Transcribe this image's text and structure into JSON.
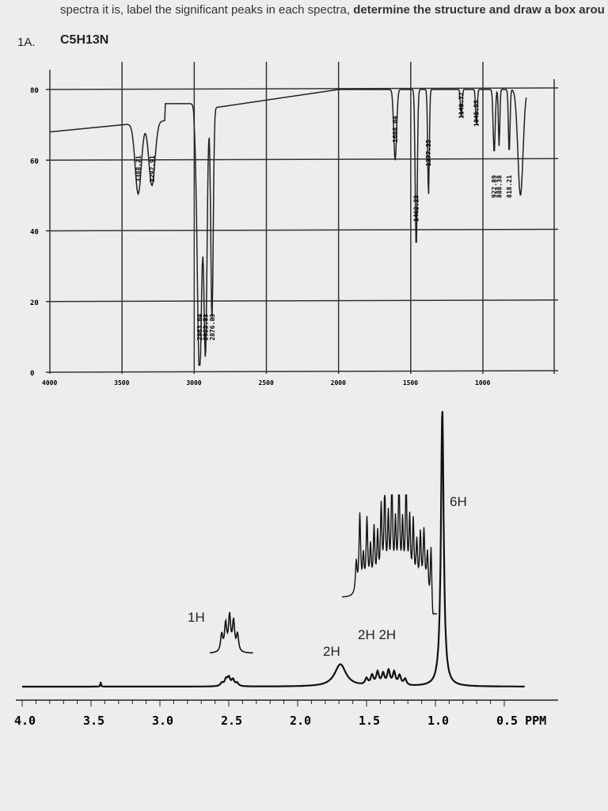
{
  "header": {
    "instruction_plain": "spectra it is, label the significant peaks in each spectra, ",
    "instruction_bold": "determine the structure and draw a box arou"
  },
  "question": {
    "number": "1A.",
    "formula": "C5H13N"
  },
  "chart_data": [
    {
      "type": "line",
      "title": "",
      "xlabel": "",
      "ylabel": "",
      "xlim": [
        4000,
        1000
      ],
      "ylim": [
        0,
        80
      ],
      "x_ticks": [
        "4000",
        "3500",
        "3000",
        "2500",
        "2000",
        "1500",
        "1000"
      ],
      "y_ticks": [
        "80",
        "60",
        "40",
        "20",
        "0"
      ],
      "grid": true,
      "peak_labels": [
        {
          "x": 3388.21,
          "label": "3388.21"
        },
        {
          "x": 3292.91,
          "label": "3292.91"
        },
        {
          "x": 2963.04,
          "label": "2963.04"
        },
        {
          "x": 2922.53,
          "label": "2922.53"
        },
        {
          "x": 2876.83,
          "label": "2876.83"
        },
        {
          "x": 1608.04,
          "label": "1608.04"
        },
        {
          "x": 1462.23,
          "label": "1462.23"
        },
        {
          "x": 1377.35,
          "label": "1377.35"
        },
        {
          "x": 1149.72,
          "label": "1149.72"
        },
        {
          "x": 1045.55,
          "label": "1045.55"
        },
        {
          "x": 922.89,
          "label": "922.89"
        },
        {
          "x": 888.38,
          "label": "888.38"
        },
        {
          "x": 818.21,
          "label": "818.21"
        }
      ]
    },
    {
      "type": "line",
      "title": "",
      "xlabel": "PPM",
      "xlim": [
        4.0,
        0.4
      ],
      "x_ticks": [
        "4.0",
        "3.5",
        "3.0",
        "2.5",
        "2.0",
        "1.5",
        "1.0",
        "0.5 PPM"
      ],
      "peaks": [
        {
          "ppm": 2.5,
          "integration": "1H"
        },
        {
          "ppm": 1.68,
          "integration": "2H"
        },
        {
          "ppm": 1.45,
          "integration": "2H"
        },
        {
          "ppm": 1.3,
          "integration": "2H"
        },
        {
          "ppm": 0.95,
          "integration": "6H"
        }
      ],
      "integration_labels": [
        "1H",
        "2H",
        "2H 2H",
        "6H"
      ]
    }
  ]
}
